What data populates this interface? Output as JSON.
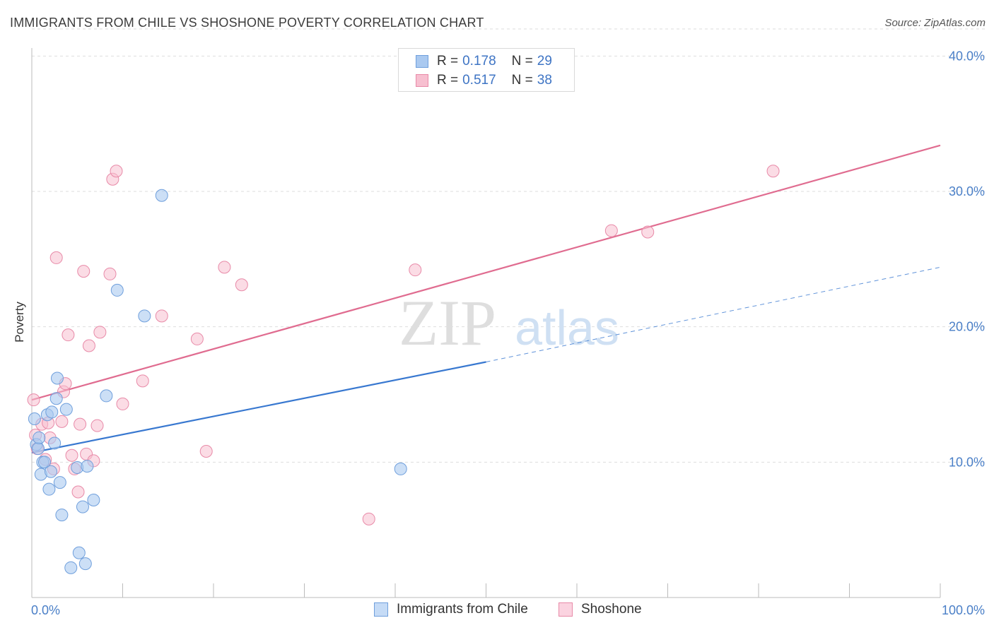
{
  "title": "IMMIGRANTS FROM CHILE VS SHOSHONE POVERTY CORRELATION CHART",
  "source": "Source: ZipAtlas.com",
  "watermark": {
    "zip": "ZIP",
    "atlas": "atlas"
  },
  "colors": {
    "blue_fill": "#aac9f0",
    "blue_stroke": "#6f9fdc",
    "blue_line": "#3878d0",
    "pink_fill": "#f7bfd0",
    "pink_stroke": "#e88aa8",
    "pink_line": "#e06c90",
    "grid": "#dddddd",
    "tick_text": "#4a7fc7"
  },
  "legend_top": [
    {
      "r_label": "R =",
      "r_value": "0.178",
      "n_label": "N =",
      "n_value": "29"
    },
    {
      "r_label": "R =",
      "r_value": "0.517",
      "n_label": "N =",
      "n_value": "38"
    }
  ],
  "legend_bottom": [
    "Immigrants from Chile",
    "Shoshone"
  ],
  "chart_data": {
    "type": "scatter",
    "title": "IMMIGRANTS FROM CHILE VS SHOSHONE POVERTY CORRELATION CHART",
    "xlabel": "",
    "ylabel": "Poverty",
    "xlim": [
      0,
      100
    ],
    "ylim": [
      0,
      42
    ],
    "x_tick_labels": [
      "0.0%",
      "100.0%"
    ],
    "y_ticks": [
      10,
      20,
      30,
      40
    ],
    "y_tick_labels": [
      "10.0%",
      "20.0%",
      "30.0%",
      "40.0%"
    ],
    "series": [
      {
        "name": "Immigrants from Chile",
        "R": 0.178,
        "N": 29,
        "points": [
          [
            0.3,
            13.2
          ],
          [
            0.5,
            11.3
          ],
          [
            0.7,
            11.0
          ],
          [
            0.8,
            11.8
          ],
          [
            1.0,
            9.1
          ],
          [
            1.2,
            10.0
          ],
          [
            1.4,
            10.0
          ],
          [
            1.7,
            13.5
          ],
          [
            1.9,
            8.0
          ],
          [
            2.1,
            9.3
          ],
          [
            2.2,
            13.7
          ],
          [
            2.5,
            11.4
          ],
          [
            2.7,
            14.7
          ],
          [
            2.8,
            16.2
          ],
          [
            3.1,
            8.5
          ],
          [
            3.3,
            6.1
          ],
          [
            3.8,
            13.9
          ],
          [
            4.3,
            2.2
          ],
          [
            5.0,
            9.6
          ],
          [
            5.2,
            3.3
          ],
          [
            5.6,
            6.7
          ],
          [
            5.9,
            2.5
          ],
          [
            6.1,
            9.7
          ],
          [
            6.8,
            7.2
          ],
          [
            8.2,
            14.9
          ],
          [
            9.4,
            22.7
          ],
          [
            12.4,
            20.8
          ],
          [
            14.3,
            29.7
          ],
          [
            40.6,
            9.5
          ]
        ],
        "trend_solid": {
          "x": [
            0,
            50
          ],
          "y": [
            10.7,
            17.4
          ]
        },
        "trend_dashed": {
          "x": [
            50,
            100
          ],
          "y": [
            17.4,
            24.4
          ]
        }
      },
      {
        "name": "Shoshone",
        "R": 0.517,
        "N": 38,
        "points": [
          [
            0.2,
            14.6
          ],
          [
            0.4,
            12.0
          ],
          [
            0.6,
            11.0
          ],
          [
            1.1,
            12.8
          ],
          [
            1.5,
            10.2
          ],
          [
            1.8,
            12.9
          ],
          [
            2.0,
            11.8
          ],
          [
            2.4,
            9.5
          ],
          [
            2.7,
            25.1
          ],
          [
            3.3,
            13.0
          ],
          [
            3.5,
            15.2
          ],
          [
            3.7,
            15.8
          ],
          [
            4.0,
            19.4
          ],
          [
            4.4,
            10.5
          ],
          [
            4.7,
            9.5
          ],
          [
            5.1,
            7.8
          ],
          [
            5.3,
            12.8
          ],
          [
            5.7,
            24.1
          ],
          [
            6.0,
            10.6
          ],
          [
            6.3,
            18.6
          ],
          [
            6.8,
            10.1
          ],
          [
            7.2,
            12.7
          ],
          [
            7.5,
            19.6
          ],
          [
            8.6,
            23.9
          ],
          [
            8.9,
            30.9
          ],
          [
            9.3,
            31.5
          ],
          [
            10.0,
            14.3
          ],
          [
            12.2,
            16.0
          ],
          [
            14.3,
            20.8
          ],
          [
            18.2,
            19.1
          ],
          [
            19.2,
            10.8
          ],
          [
            21.2,
            24.4
          ],
          [
            23.1,
            23.1
          ],
          [
            37.1,
            5.8
          ],
          [
            42.2,
            24.2
          ],
          [
            63.8,
            27.1
          ],
          [
            67.8,
            27.0
          ],
          [
            81.6,
            31.5
          ]
        ],
        "trend_solid": {
          "x": [
            0,
            100
          ],
          "y": [
            14.6,
            33.4
          ]
        }
      }
    ]
  }
}
